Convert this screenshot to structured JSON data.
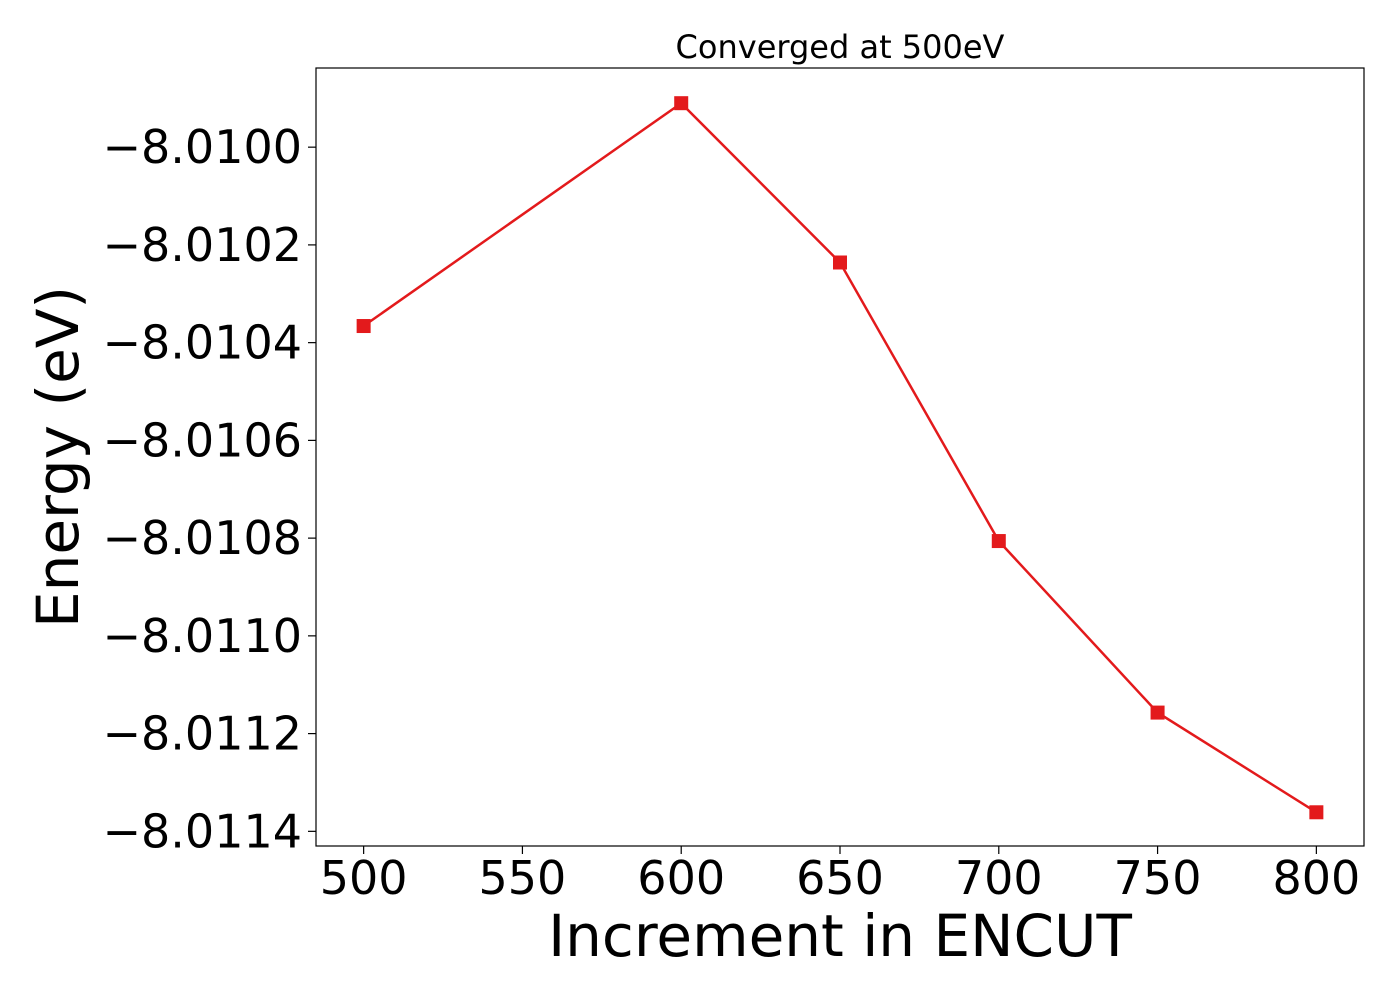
{
  "chart_data": {
    "type": "line",
    "title": "Converged at 500eV",
    "xlabel": "Increment in ENCUT",
    "ylabel": "Energy (eV)",
    "x": [
      500,
      600,
      650,
      700,
      750,
      800
    ],
    "series": [
      {
        "values": [
          -8.010366,
          -8.00991,
          -8.010236,
          -8.010806,
          -8.011157,
          -8.011361
        ],
        "color": "#e31a1c",
        "marker": "square"
      }
    ],
    "xlim": [
      485,
      815
    ],
    "ylim": [
      -8.01143,
      -8.009838
    ],
    "xticks": [
      500,
      550,
      600,
      650,
      700,
      750,
      800
    ],
    "xtick_labels": [
      "500",
      "550",
      "600",
      "650",
      "700",
      "750",
      "800"
    ],
    "yticks": [
      -8.01,
      -8.0102,
      -8.0104,
      -8.0106,
      -8.0108,
      -8.011,
      -8.0112,
      -8.0114
    ],
    "ytick_labels": [
      "−8.0100",
      "−8.0102",
      "−8.0104",
      "−8.0106",
      "−8.0108",
      "−8.0110",
      "−8.0112",
      "−8.0114"
    ],
    "grid": false,
    "legend": "none"
  }
}
